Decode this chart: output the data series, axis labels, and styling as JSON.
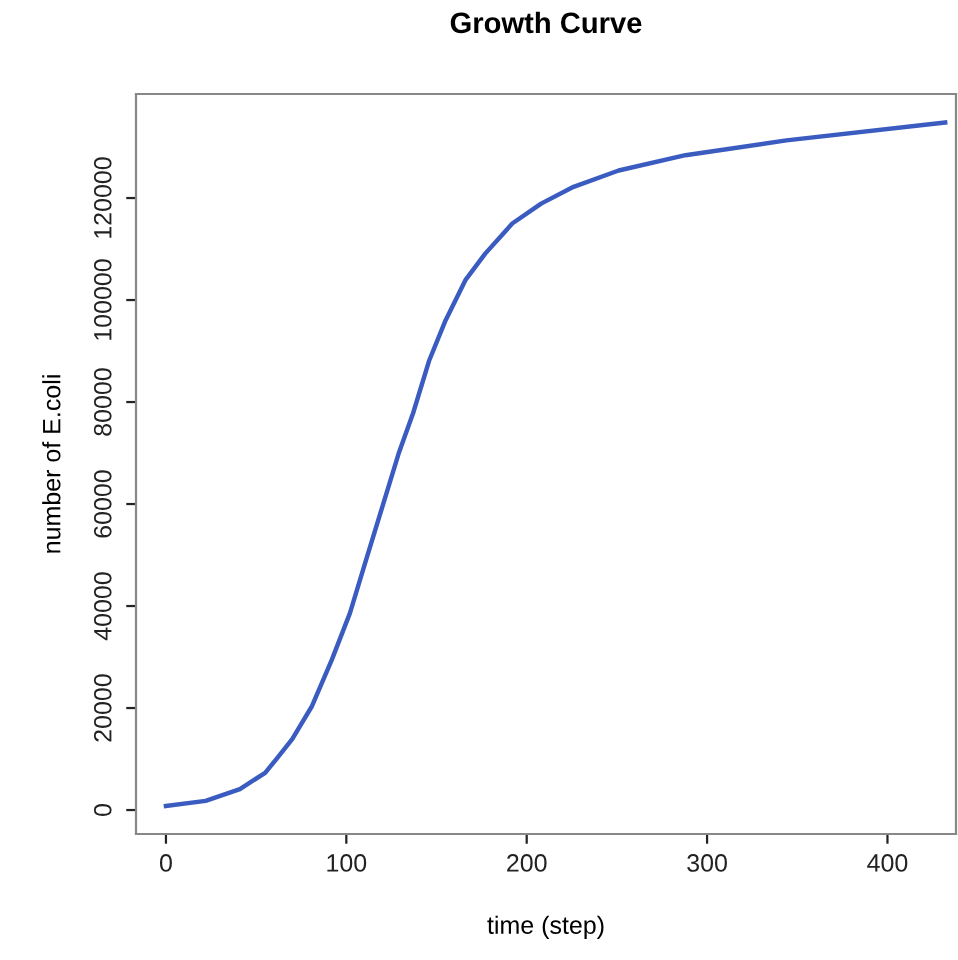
{
  "chart_data": {
    "type": "line",
    "title": "Growth Curve",
    "xlabel": "time (step)",
    "ylabel": "number of E.coli",
    "x": [
      0,
      22,
      41,
      55,
      61,
      70,
      81,
      92,
      102,
      111,
      120,
      129,
      137,
      146,
      155,
      166,
      177,
      192,
      208,
      226,
      251,
      288,
      344,
      432
    ],
    "series": [
      {
        "color": "#3a5bbf",
        "values": [
          800,
          1800,
          4100,
          7300,
          9900,
          13900,
          20400,
          29500,
          38600,
          49100,
          59500,
          69900,
          77800,
          88200,
          96000,
          103900,
          109100,
          115000,
          118900,
          122200,
          125400,
          128400,
          131300,
          134800
        ]
      }
    ],
    "xlim": [
      -16.6,
      438
    ],
    "xticks": [
      0,
      100,
      200,
      300,
      400
    ],
    "ylim": [
      -4700,
      140400
    ],
    "yticks": [
      0,
      20000,
      40000,
      60000,
      80000,
      100000,
      120000
    ],
    "grid": false,
    "marker": "none",
    "line_style": "solid"
  }
}
